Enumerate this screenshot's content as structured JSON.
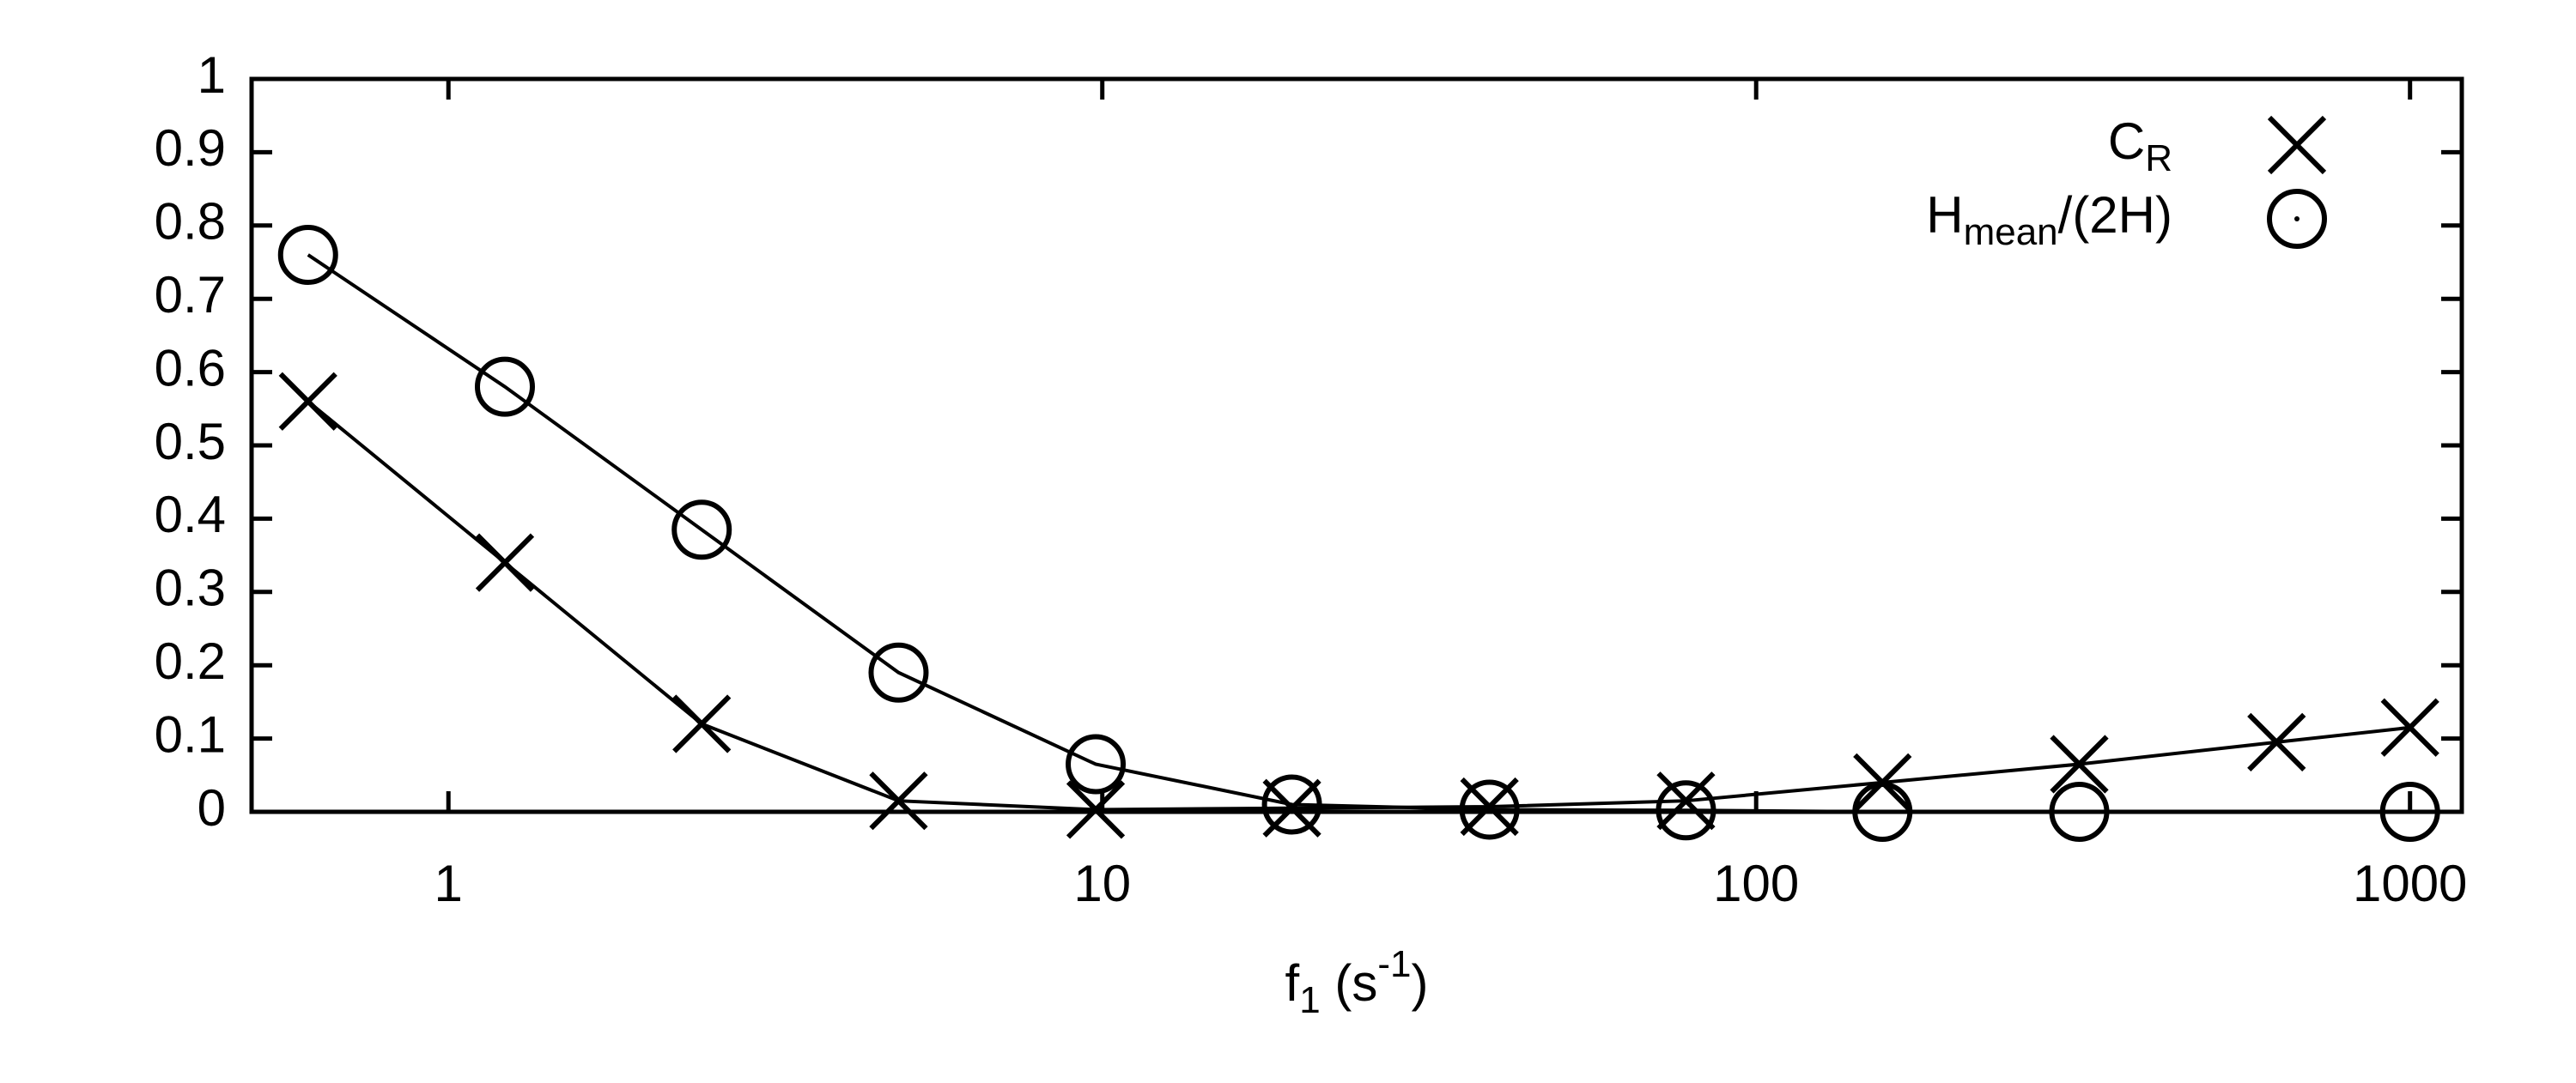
{
  "chart_data": {
    "type": "line",
    "x_label": [
      {
        "text": "f"
      },
      {
        "text": "1",
        "shift": "sub"
      },
      {
        "text": " (s"
      },
      {
        "text": "-1",
        "shift": "super"
      },
      {
        "text": ")"
      }
    ],
    "xscale": "log",
    "xlim": [
      0.5,
      1200
    ],
    "xticks": [
      1,
      10,
      100,
      1000
    ],
    "ylim": [
      0,
      1
    ],
    "yticks": [
      0,
      0.1,
      0.2,
      0.3,
      0.4,
      0.5,
      0.6,
      0.7,
      0.8,
      0.9,
      1
    ],
    "legend": "upper right",
    "series": [
      {
        "name": [
          {
            "text": "C"
          },
          {
            "text": "R",
            "shift": "sub"
          }
        ],
        "marker": "x",
        "color": "#000000",
        "x": [
          0.61,
          1.22,
          2.44,
          4.88,
          9.77,
          19.5,
          39.1,
          78.1,
          156,
          312,
          625,
          1000
        ],
        "values": [
          0.56,
          0.34,
          0.12,
          0.015,
          0.003,
          0.005,
          0.007,
          0.015,
          0.04,
          0.065,
          0.095,
          0.115
        ]
      },
      {
        "name": [
          {
            "text": "H"
          },
          {
            "text": "mean",
            "shift": "sub"
          },
          {
            "text": "/(2H)"
          }
        ],
        "marker": "circle",
        "color": "#000000",
        "x": [
          0.61,
          1.22,
          2.44,
          4.88,
          9.77,
          19.5,
          39.1,
          78.1,
          156,
          312,
          1000
        ],
        "values": [
          0.76,
          0.58,
          0.385,
          0.19,
          0.065,
          0.01,
          0.003,
          0.002,
          0.0,
          0.0,
          0.0
        ]
      }
    ]
  }
}
